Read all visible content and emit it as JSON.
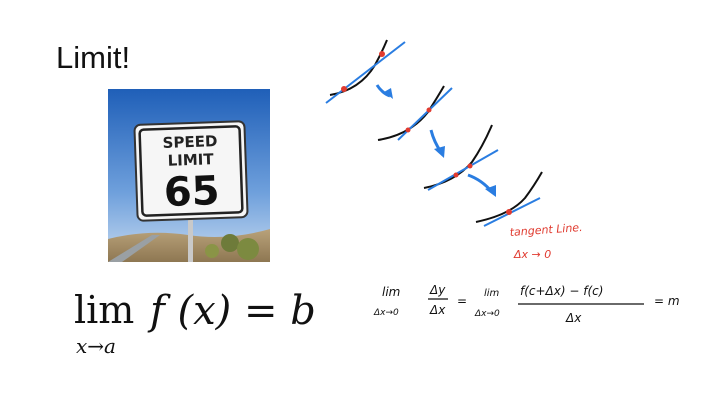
{
  "slide": {
    "title": "Limit!",
    "sign": {
      "line1": "SPEED",
      "line2": "LIMIT",
      "number": "65"
    },
    "formula": {
      "lim": "lim",
      "subscript": "x→a",
      "expression": "f (x) = b"
    },
    "annotations": {
      "tangent_label": "tangent Line.",
      "delta_label": "Δx → 0",
      "eq_lhs_top": "lim",
      "eq_lhs_bottom": "Δx→0",
      "eq_frac_top": "Δy",
      "eq_frac_bottom": "Δx",
      "eq_equals": "=",
      "eq_mid_top": "lim",
      "eq_mid_bottom": "Δx→0",
      "eq_numerator": "f(c+Δx) − f(c)",
      "eq_denominator": "Δx",
      "eq_result": "= m"
    },
    "colors": {
      "curve": "#111111",
      "tangent": "#2a7de1",
      "point": "#e03a2f",
      "red_ink": "#e03a2f"
    }
  }
}
